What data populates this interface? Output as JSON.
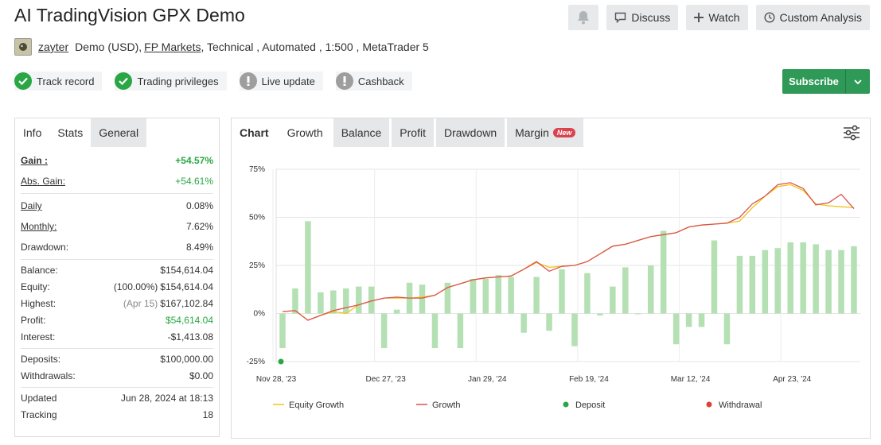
{
  "title": "AI TradingVision GPX Demo",
  "buttons": {
    "discuss": "Discuss",
    "watch": "Watch",
    "custom": "Custom Analysis"
  },
  "subline": {
    "user": "zayter",
    "account": "Demo (USD),",
    "broker": "FP Markets",
    "rest": ", Technical , Automated , 1:500 , MetaTrader 5"
  },
  "badges": [
    {
      "label": "Track record",
      "status": "ok",
      "color": "#29a744"
    },
    {
      "label": "Trading privileges",
      "status": "ok",
      "color": "#29a744"
    },
    {
      "label": "Live update",
      "status": "warn",
      "color": "#9e9e9e"
    },
    {
      "label": "Cashback",
      "status": "warn",
      "color": "#9e9e9e"
    }
  ],
  "subscribe": "Subscribe",
  "left_tabs": [
    "Info",
    "Stats",
    "General"
  ],
  "stats": {
    "gain": {
      "k": "Gain :",
      "v": "+54.57%"
    },
    "abs_gain": {
      "k": "Abs. Gain:",
      "v": "+54.61%"
    },
    "daily": {
      "k": "Daily",
      "v": "0.08%"
    },
    "monthly": {
      "k": "Monthly:",
      "v": "7.62%"
    },
    "drawdown": {
      "k": "Drawdown:",
      "v": "8.49%"
    },
    "balance": {
      "k": "Balance:",
      "v": "$154,614.04"
    },
    "equity": {
      "k": "Equity:",
      "pre": "(100.00%)",
      "v": "$154,614.04"
    },
    "highest": {
      "k": "Highest:",
      "pre": "(Apr 15)",
      "v": "$167,102.84"
    },
    "profit": {
      "k": "Profit:",
      "v": "$54,614.04"
    },
    "interest": {
      "k": "Interest:",
      "v": "-$1,413.08"
    },
    "deposits": {
      "k": "Deposits:",
      "v": "$100,000.00"
    },
    "withdrawals": {
      "k": "Withdrawals:",
      "v": "$0.00"
    },
    "updated": {
      "k": "Updated",
      "v": "Jun 28, 2024 at 18:13"
    },
    "tracking": {
      "k": "Tracking",
      "v": "18"
    }
  },
  "right_tabs": {
    "chart": "Chart",
    "growth": "Growth",
    "balance": "Balance",
    "profit": "Profit",
    "drawdown": "Drawdown",
    "margin": "Margin",
    "new": "New"
  },
  "colors": {
    "accent": "#2f9a57",
    "equity": "#f2c314",
    "growth": "#d9534f",
    "bars": "#b4e0b4",
    "deposit": "#29a744",
    "withdrawal": "#d9433a"
  },
  "chart_data": {
    "type": "line+bar",
    "y_ticks": [
      "75%",
      "50%",
      "25%",
      "0%",
      "-25%"
    ],
    "ylim": [
      -25,
      75
    ],
    "x_ticks": [
      "Nov 28, '23",
      "Dec 27, '23",
      "Jan 29, '24",
      "Feb 19, '24",
      "Mar 12, '24",
      "Apr 23, '24"
    ],
    "x_tick_index": [
      0,
      8,
      16,
      24,
      32,
      40
    ],
    "n_points": 46,
    "bars": [
      -18,
      13,
      48,
      11,
      12,
      13,
      14,
      14,
      -18,
      2,
      16,
      15,
      -18,
      16,
      -18,
      18,
      18,
      20,
      19,
      -10,
      19,
      -9,
      23,
      -17,
      21,
      -1,
      14,
      24,
      0,
      25,
      43,
      -16,
      -7,
      -7,
      38,
      -16,
      30,
      30,
      33,
      34,
      37,
      37,
      36,
      33,
      33,
      35
    ],
    "growth": [
      1,
      1.5,
      -3.5,
      -1,
      1.5,
      3,
      4.5,
      6.5,
      8,
      8.5,
      8,
      8,
      9.5,
      13.5,
      15.5,
      17.5,
      18.5,
      19,
      19.5,
      23,
      27,
      22,
      24.5,
      25,
      27,
      31,
      35,
      36,
      38,
      40,
      41,
      42,
      45,
      46,
      46.5,
      47,
      50,
      57,
      61,
      67,
      68,
      65,
      56.5,
      57.5,
      62,
      54.5
    ],
    "equity": [
      1,
      1.5,
      -3.5,
      -1,
      1,
      0,
      4.5,
      6.5,
      8,
      8,
      8,
      8.5,
      9.5,
      13.5,
      15.5,
      17.5,
      18.5,
      19,
      19.5,
      23,
      26.5,
      24,
      24.5,
      25,
      27,
      31,
      35,
      36,
      38,
      40,
      41,
      42,
      45,
      46,
      46.5,
      47,
      48,
      55,
      61,
      66,
      67,
      64,
      57,
      56,
      55.5,
      55
    ],
    "deposit_points": [
      {
        "index": 0,
        "y": -25
      }
    ],
    "legend": [
      "Equity Growth",
      "Growth",
      "Deposit",
      "Withdrawal"
    ]
  }
}
